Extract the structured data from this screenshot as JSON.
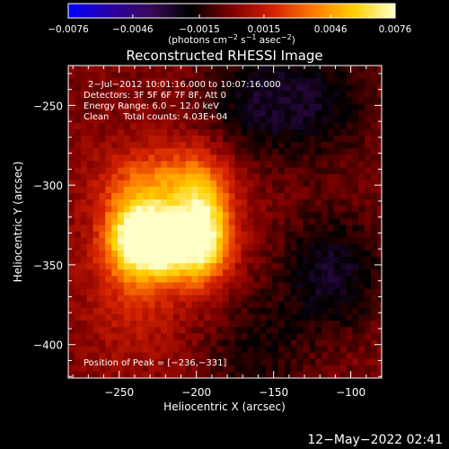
{
  "chart_data": {
    "type": "heatmap",
    "title": "Reconstructed RHESSI Image",
    "xlabel": "Heliocentric X (arcsec)",
    "ylabel": "Heliocentric Y (arcsec)",
    "xlim": [
      -283,
      -80
    ],
    "ylim": [
      -421,
      -225
    ],
    "x_ticks": [
      -250,
      -200,
      -150,
      -100
    ],
    "y_ticks": [
      -250,
      -300,
      -350,
      -400
    ],
    "x_tick_labels": [
      "−250",
      "−200",
      "−150",
      "−100"
    ],
    "y_tick_labels": [
      "−250",
      "−300",
      "−350",
      "−400"
    ],
    "colorbar": {
      "range": [
        -0.0076,
        0.0076
      ],
      "ticks": [
        -0.0076,
        -0.0046,
        -0.0015,
        0.0015,
        0.0046,
        0.0076
      ],
      "tick_labels": [
        "−0.0076",
        "−0.0046",
        "−0.0015",
        "0.0015",
        "0.0046",
        "0.0076"
      ],
      "units_text": "(photons cm",
      "units_exp1": "−2",
      "units_mid": " s",
      "units_exp2": "−1",
      "units_end": " asec",
      "units_exp3": "−2",
      "units_close": ")",
      "colors": [
        "#0000ff",
        "#2a00a8",
        "#3a0a5a",
        "#000000",
        "#800000",
        "#d22000",
        "#ff7a00",
        "#ffd000",
        "#ffffc8"
      ]
    },
    "annotations": [
      "2−Jul−2012 10:01:16.000 to 10:07:16.000",
      "Detectors: 3F 5F 6F 7F 8F, Att 0",
      "Energy Range: 6.0 − 12.0 keV",
      "Clean     Total counts: 4.03E+04"
    ],
    "peak_label": "Position of Peak = [−236,−331]",
    "peak": [
      -236,
      -331
    ],
    "sources": [
      {
        "x": -236,
        "y": -331,
        "amplitude": 0.0076
      },
      {
        "x": -196,
        "y": -325,
        "amplitude": 0.006
      },
      {
        "x": -212,
        "y": -338,
        "amplitude": 0.0048
      },
      {
        "x": -222,
        "y": -296,
        "amplitude": 0.003
      },
      {
        "x": -240,
        "y": -368,
        "amplitude": 0.0018
      }
    ],
    "negative_regions": [
      {
        "x": -162,
        "y": -247,
        "amplitude": -0.0022
      },
      {
        "x": -118,
        "y": -247,
        "amplitude": -0.002
      },
      {
        "x": -112,
        "y": -355,
        "amplitude": -0.0026
      },
      {
        "x": -160,
        "y": -405,
        "amplitude": -0.0016
      }
    ]
  },
  "footer": {
    "timestamp": "12−May−2022 02:41"
  }
}
